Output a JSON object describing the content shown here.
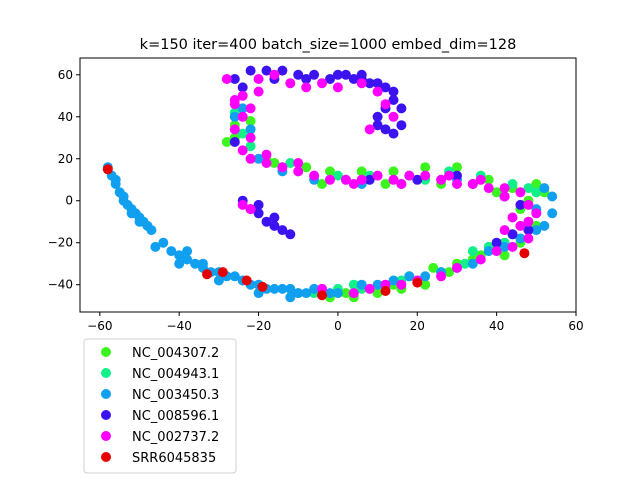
{
  "chart_data": {
    "type": "scatter",
    "title": "k=150 iter=400 batch_size=1000 embed_dim=128",
    "xlabel": "",
    "ylabel": "",
    "xlim": [
      -65,
      60
    ],
    "ylim": [
      -53,
      68
    ],
    "xticks": [
      -60,
      -40,
      -20,
      0,
      20,
      40,
      60
    ],
    "yticks": [
      -40,
      -20,
      0,
      20,
      40,
      60
    ],
    "grid": false,
    "legend_position": "below-left",
    "series": [
      {
        "name": "NC_004307.2",
        "color": "#3cf51e",
        "points": [
          [
            -26,
            30
          ],
          [
            -24,
            44
          ],
          [
            -26,
            36
          ],
          [
            -18,
            20
          ],
          [
            -8,
            16
          ],
          [
            -2,
            14
          ],
          [
            6,
            14
          ],
          [
            14,
            14
          ],
          [
            22,
            16
          ],
          [
            30,
            16
          ],
          [
            38,
            10
          ],
          [
            44,
            6
          ],
          [
            50,
            8
          ],
          [
            52,
            4
          ],
          [
            48,
            0
          ],
          [
            48,
            -10
          ],
          [
            46,
            -20
          ],
          [
            40,
            -22
          ],
          [
            36,
            -26
          ],
          [
            30,
            -30
          ],
          [
            24,
            -32
          ],
          [
            18,
            -36
          ],
          [
            14,
            -40
          ],
          [
            8,
            -42
          ],
          [
            2,
            -44
          ],
          [
            -4,
            -44
          ],
          [
            -10,
            -44
          ],
          [
            -2,
            -46
          ],
          [
            4,
            -46
          ],
          [
            10,
            -44
          ],
          [
            16,
            -42
          ],
          [
            22,
            -40
          ],
          [
            28,
            -34
          ],
          [
            34,
            -28
          ],
          [
            42,
            -26
          ],
          [
            -28,
            28
          ],
          [
            -22,
            38
          ],
          [
            -16,
            18
          ],
          [
            -4,
            8
          ],
          [
            12,
            8
          ],
          [
            26,
            8
          ],
          [
            40,
            4
          ],
          [
            46,
            -4
          ],
          [
            50,
            -12
          ]
        ]
      },
      {
        "name": "NC_004943.1",
        "color": "#12f08a",
        "points": [
          [
            -26,
            42
          ],
          [
            -22,
            26
          ],
          [
            -14,
            16
          ],
          [
            -6,
            12
          ],
          [
            0,
            12
          ],
          [
            8,
            12
          ],
          [
            18,
            12
          ],
          [
            28,
            14
          ],
          [
            36,
            12
          ],
          [
            44,
            8
          ],
          [
            50,
            4
          ],
          [
            50,
            -6
          ],
          [
            44,
            -16
          ],
          [
            38,
            -22
          ],
          [
            32,
            -30
          ],
          [
            26,
            -34
          ],
          [
            20,
            -38
          ],
          [
            12,
            -42
          ],
          [
            6,
            -42
          ],
          [
            0,
            -42
          ],
          [
            -6,
            -44
          ],
          [
            4,
            -40
          ],
          [
            16,
            -38
          ],
          [
            34,
            -24
          ],
          [
            42,
            -20
          ],
          [
            48,
            6
          ],
          [
            -24,
            32
          ],
          [
            -12,
            18
          ],
          [
            2,
            10
          ],
          [
            22,
            10
          ]
        ]
      },
      {
        "name": "NC_003450.3",
        "color": "#119ff0",
        "points": [
          [
            -58,
            16
          ],
          [
            -57,
            12
          ],
          [
            -56,
            8
          ],
          [
            -55,
            4
          ],
          [
            -54,
            0
          ],
          [
            -53,
            -2
          ],
          [
            -52,
            -4
          ],
          [
            -51,
            -6
          ],
          [
            -50,
            -8
          ],
          [
            -49,
            -10
          ],
          [
            -48,
            -12
          ],
          [
            -47,
            -14
          ],
          [
            -56,
            10
          ],
          [
            -54,
            2
          ],
          [
            -52,
            -6
          ],
          [
            -50,
            -10
          ],
          [
            -42,
            -24
          ],
          [
            -40,
            -26
          ],
          [
            -38,
            -28
          ],
          [
            -36,
            -30
          ],
          [
            -34,
            -32
          ],
          [
            -32,
            -34
          ],
          [
            -30,
            -34
          ],
          [
            -28,
            -36
          ],
          [
            -26,
            -36
          ],
          [
            -24,
            -38
          ],
          [
            -22,
            -40
          ],
          [
            -20,
            -40
          ],
          [
            -18,
            -42
          ],
          [
            -16,
            -42
          ],
          [
            -14,
            -42
          ],
          [
            -12,
            -42
          ],
          [
            -10,
            -44
          ],
          [
            -8,
            -44
          ],
          [
            -6,
            -42
          ],
          [
            -4,
            -42
          ],
          [
            -2,
            -44
          ],
          [
            0,
            -44
          ],
          [
            6,
            -40
          ],
          [
            10,
            -40
          ],
          [
            14,
            -38
          ],
          [
            18,
            -36
          ],
          [
            22,
            -36
          ],
          [
            26,
            -34
          ],
          [
            30,
            -32
          ],
          [
            34,
            -30
          ],
          [
            38,
            -24
          ],
          [
            42,
            -22
          ],
          [
            46,
            -18
          ],
          [
            50,
            -14
          ],
          [
            52,
            -12
          ],
          [
            54,
            -6
          ],
          [
            50,
            -4
          ],
          [
            54,
            2
          ],
          [
            52,
            6
          ],
          [
            -20,
            20
          ],
          [
            -14,
            14
          ],
          [
            -6,
            10
          ],
          [
            6,
            8
          ],
          [
            16,
            8
          ],
          [
            30,
            10
          ],
          [
            -24,
            44
          ],
          [
            -26,
            40
          ],
          [
            -22,
            34
          ],
          [
            -34,
            -30
          ],
          [
            -38,
            -24
          ],
          [
            -44,
            -20
          ],
          [
            -46,
            -22
          ],
          [
            -40,
            -30
          ],
          [
            -30,
            -38
          ],
          [
            -20,
            -44
          ],
          [
            -12,
            -46
          ]
        ]
      },
      {
        "name": "NC_008596.1",
        "color": "#3c12f0",
        "points": [
          [
            -26,
            58
          ],
          [
            -22,
            62
          ],
          [
            -18,
            62
          ],
          [
            -14,
            62
          ],
          [
            -10,
            60
          ],
          [
            -6,
            60
          ],
          [
            -2,
            58
          ],
          [
            0,
            60
          ],
          [
            2,
            60
          ],
          [
            4,
            58
          ],
          [
            6,
            58
          ],
          [
            8,
            56
          ],
          [
            10,
            56
          ],
          [
            12,
            54
          ],
          [
            14,
            52
          ],
          [
            14,
            48
          ],
          [
            12,
            44
          ],
          [
            10,
            40
          ],
          [
            10,
            36
          ],
          [
            12,
            34
          ],
          [
            14,
            32
          ],
          [
            16,
            36
          ],
          [
            16,
            44
          ],
          [
            -24,
            54
          ],
          [
            -16,
            58
          ],
          [
            -8,
            58
          ],
          [
            6,
            60
          ],
          [
            -24,
            0
          ],
          [
            -22,
            -4
          ],
          [
            -20,
            -6
          ],
          [
            -18,
            -10
          ],
          [
            -16,
            -12
          ],
          [
            -14,
            -14
          ],
          [
            -12,
            -16
          ],
          [
            -20,
            -2
          ],
          [
            -16,
            -8
          ],
          [
            -26,
            28
          ],
          [
            8,
            10
          ],
          [
            20,
            10
          ],
          [
            34,
            8
          ],
          [
            42,
            2
          ],
          [
            46,
            -2
          ],
          [
            48,
            -14
          ],
          [
            44,
            -16
          ],
          [
            40,
            -20
          ],
          [
            30,
            12
          ]
        ]
      },
      {
        "name": "NC_002737.2",
        "color": "#ff00ff",
        "points": [
          [
            -28,
            58
          ],
          [
            -24,
            50
          ],
          [
            -26,
            46
          ],
          [
            -24,
            40
          ],
          [
            -26,
            34
          ],
          [
            -22,
            30
          ],
          [
            -24,
            24
          ],
          [
            -22,
            20
          ],
          [
            -18,
            18
          ],
          [
            -14,
            16
          ],
          [
            -10,
            14
          ],
          [
            -6,
            12
          ],
          [
            -2,
            10
          ],
          [
            2,
            10
          ],
          [
            6,
            10
          ],
          [
            10,
            12
          ],
          [
            14,
            10
          ],
          [
            18,
            12
          ],
          [
            22,
            12
          ],
          [
            26,
            10
          ],
          [
            30,
            8
          ],
          [
            34,
            8
          ],
          [
            38,
            6
          ],
          [
            42,
            6
          ],
          [
            46,
            4
          ],
          [
            48,
            -2
          ],
          [
            44,
            -8
          ],
          [
            46,
            -12
          ],
          [
            42,
            -14
          ],
          [
            48,
            -18
          ],
          [
            44,
            -22
          ],
          [
            40,
            -24
          ],
          [
            36,
            -28
          ],
          [
            30,
            -32
          ],
          [
            26,
            -36
          ],
          [
            20,
            -38
          ],
          [
            16,
            -40
          ],
          [
            12,
            -40
          ],
          [
            8,
            -42
          ],
          [
            4,
            -44
          ],
          [
            -4,
            -42
          ],
          [
            -16,
            60
          ],
          [
            -12,
            56
          ],
          [
            -8,
            54
          ],
          [
            -4,
            56
          ],
          [
            0,
            54
          ],
          [
            6,
            56
          ],
          [
            10,
            52
          ],
          [
            12,
            46
          ],
          [
            14,
            40
          ],
          [
            8,
            34
          ],
          [
            -20,
            52
          ],
          [
            -24,
            -2
          ],
          [
            -22,
            -4
          ],
          [
            -18,
            22
          ],
          [
            -10,
            18
          ],
          [
            4,
            8
          ],
          [
            16,
            8
          ],
          [
            28,
            12
          ],
          [
            36,
            10
          ],
          [
            42,
            2
          ],
          [
            50,
            -6
          ],
          [
            48,
            -10
          ],
          [
            -26,
            48
          ],
          [
            -22,
            44
          ],
          [
            -20,
            58
          ]
        ]
      },
      {
        "name": "SRR6045835",
        "color": "#e50000",
        "points": [
          [
            -58,
            15
          ],
          [
            -33,
            -35
          ],
          [
            -29,
            -34
          ],
          [
            -23,
            -38
          ],
          [
            -19,
            -41
          ],
          [
            -4,
            -45
          ],
          [
            12,
            -43
          ],
          [
            20,
            -39
          ],
          [
            47,
            -25
          ]
        ]
      }
    ]
  }
}
